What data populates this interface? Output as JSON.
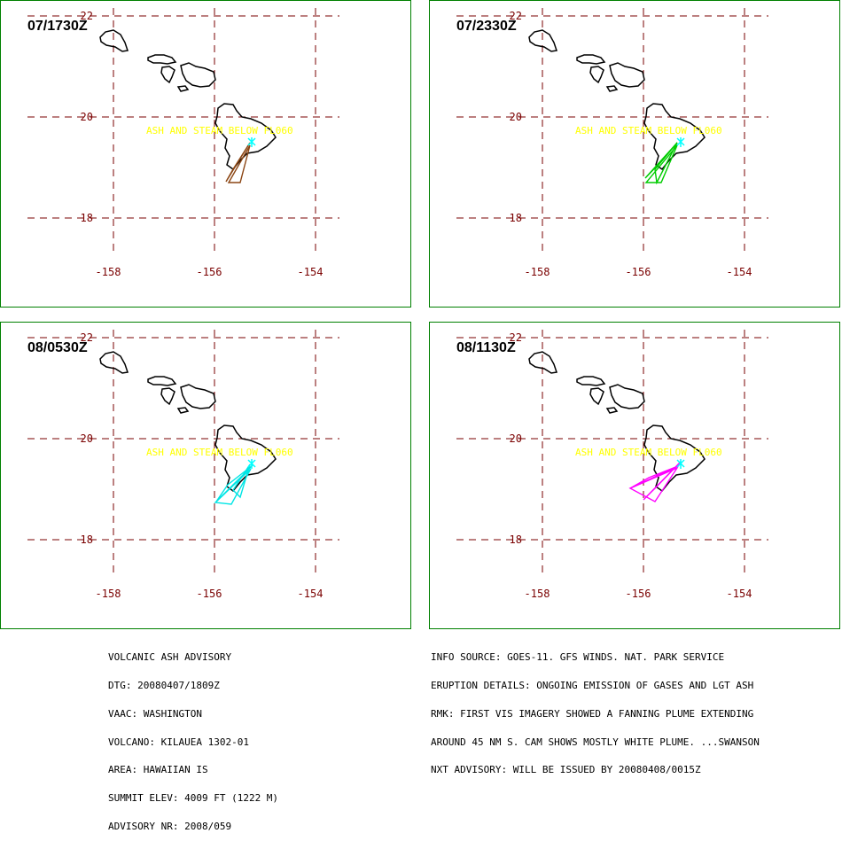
{
  "ash_text": "ASH AND STEAM   BELOW FL060",
  "lat_ticks": [
    22,
    20,
    18
  ],
  "lon_ticks": [
    -158,
    -156,
    -154
  ],
  "lat_labels": [
    "22",
    "20",
    "18"
  ],
  "lon_labels": [
    "-158",
    "-156",
    "-154"
  ],
  "colors": {
    "border": "#008000",
    "grid": "#7a0000",
    "coast": "#000000",
    "ash_text": "#ffff00",
    "vent": "#00ffff",
    "plume_0": "#8b4513",
    "plume_1": "#00cc00",
    "plume_2": "#00e5e5",
    "plume_3": "#ff00ff"
  },
  "panels": [
    {
      "time": "07/1730Z",
      "plume_color": "#8b4513"
    },
    {
      "time": "07/2330Z",
      "plume_color": "#00cc00"
    },
    {
      "time": "08/0530Z",
      "plume_color": "#00e5e5"
    },
    {
      "time": "08/1130Z",
      "plume_color": "#ff00ff"
    }
  ],
  "advisory": {
    "left_lines": [
      "VOLCANIC ASH ADVISORY",
      "DTG: 20080407/1809Z",
      "VAAC: WASHINGTON",
      "VOLCANO: KILAUEA 1302-01",
      "AREA: HAWAIIAN IS",
      "SUMMIT ELEV: 4009 FT (1222 M)",
      "ADVISORY NR: 2008/059"
    ],
    "right_lines": [
      "INFO SOURCE: GOES-11. GFS WINDS. NAT. PARK SERVICE",
      "ERUPTION DETAILS: ONGOING EMISSION OF GASES AND LGT ASH",
      "RMK: FIRST VIS IMAGERY SHOWED A FANNING PLUME EXTENDING",
      "AROUND 45 NM S. CAM SHOWS MOSTLY WHITE PLUME. ...SWANSON",
      "NXT ADVISORY: WILL BE ISSUED BY 20080408/0015Z"
    ]
  }
}
